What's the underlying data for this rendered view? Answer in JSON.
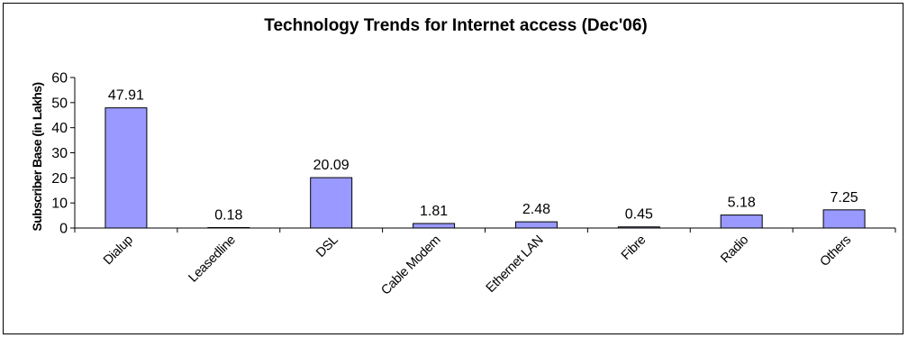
{
  "chart_data": {
    "type": "bar",
    "title": "Technology Trends for Internet access  (Dec'06)",
    "xlabel": "",
    "ylabel": "Subscriber Base (in Lakhs)",
    "ylim": [
      0,
      60
    ],
    "yticks": [
      0,
      10,
      20,
      30,
      40,
      50,
      60
    ],
    "categories": [
      "Dialup",
      "Leasedline",
      "DSL",
      "Cable Modem",
      "Ethernet LAN",
      "Fibre",
      "Radio",
      "Others"
    ],
    "values": [
      47.91,
      0.18,
      20.09,
      1.81,
      2.48,
      0.45,
      5.18,
      7.25
    ],
    "data_labels": [
      "47.91",
      "0.18",
      "20.09",
      "1.81",
      "2.48",
      "0.45",
      "5.18",
      "7.25"
    ],
    "bar_color": "#9999ff",
    "bar_edge_color": "#000000",
    "grid": false,
    "legend": "none"
  }
}
